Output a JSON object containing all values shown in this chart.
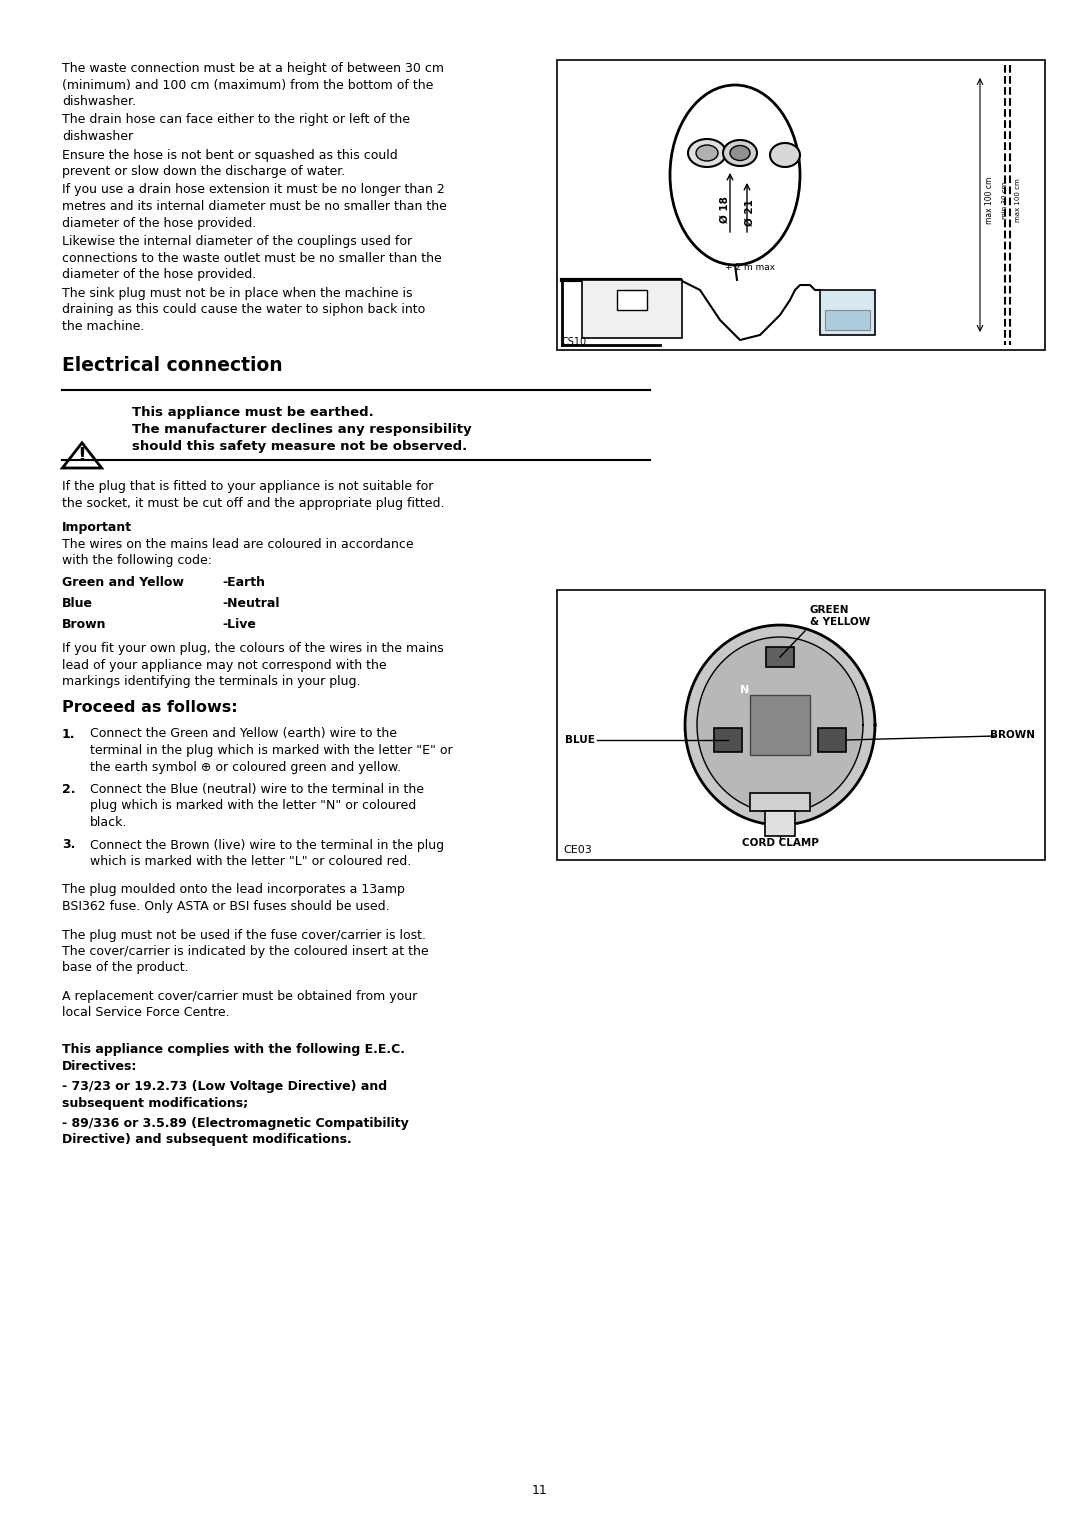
{
  "bg_color": "#ffffff",
  "text_color": "#000000",
  "page_number": "11",
  "lm": 0.058,
  "rm": 0.96,
  "col_break": 0.515,
  "para1": "The waste connection must be at a height of between 30 cm\n(minimum) and 100 cm (maximum) from the bottom of the\ndishwasher.",
  "para2": "The drain hose can face either to the right or left of the\ndishwasher",
  "para3": "Ensure the hose is not bent or squashed as this could\nprevent or slow down the discharge of water.",
  "para4": "If you use a drain hose extension it must be no longer than 2\nmetres and its internal diameter must be no smaller than the\ndiameter of the hose provided.",
  "para5": "Likewise the internal diameter of the couplings used for\nconnections to the waste outlet must be no smaller than the\ndiameter of the hose provided.",
  "para6": "The sink plug must not be in place when the machine is\ndraining as this could cause the water to siphon back into\nthe machine.",
  "section_title": "Electrical connection",
  "warning_line1": "This appliance must be earthed.",
  "warning_line2": "The manufacturer declines any responsibility",
  "warning_line3": "should this safety measure not be observed.",
  "plug_para1": "If the plug that is fitted to your appliance is not suitable for\nthe socket, it must be cut off and the appropriate plug fitted.",
  "important_label": "Important",
  "important_para": "The wires on the mains lead are coloured in accordance\nwith the following code:",
  "wire1_label": "Green and Yellow",
  "wire1_tab": "-Earth",
  "wire2_label": "Blue",
  "wire2_tab": "-Neutral",
  "wire3_label": "Brown",
  "wire3_tab": "-Live",
  "own_plug_para": "If you fit your own plug, the colours of the wires in the mains\nlead of your appliance may not correspond with the\nmarkings identifying the terminals in your plug.",
  "proceed_title": "Proceed as follows:",
  "step1a": "Connect the Green and Yellow (earth) wire to the",
  "step1b": "terminal in the plug which is marked with the letter \"E\" or",
  "step1c": "the earth symbol ⊕ or coloured green and yellow.",
  "step2a": "Connect the Blue (neutral) wire to the terminal in the",
  "step2b": "plug which is marked with the letter \"N\" or coloured",
  "step2c": "black.",
  "step3a": "Connect the Brown (live) wire to the terminal in the plug",
  "step3b": "which is marked with the letter \"L\" or coloured red.",
  "fuse_para": "The plug moulded onto the lead incorporates a 13amp\nBSI362 fuse. Only ASTA or BSI fuses should be used.",
  "cover_para1": "The plug must not be used if the fuse cover/carrier is lost.\nThe cover/carrier is indicated by the coloured insert at the\nbase of the product.",
  "cover_para2": "A replacement cover/carrier must be obtained from your\nlocal Service Force Centre.",
  "eec1a": "This appliance complies with the following E.E.C.",
  "eec1b": "Directives:",
  "eec2a": "- 73/23 or 19.2.73 (Low Voltage Directive) and",
  "eec2b": "subsequent modifications;",
  "eec3a": "- 89/336 or 3.5.89 (Electromagnetic Compatibility",
  "eec3b": "Directive) and subsequent modifications.",
  "font_body": 9.0,
  "font_title": 13.5,
  "font_proceed": 11.5,
  "font_warn": 9.5,
  "font_small": 7.0
}
